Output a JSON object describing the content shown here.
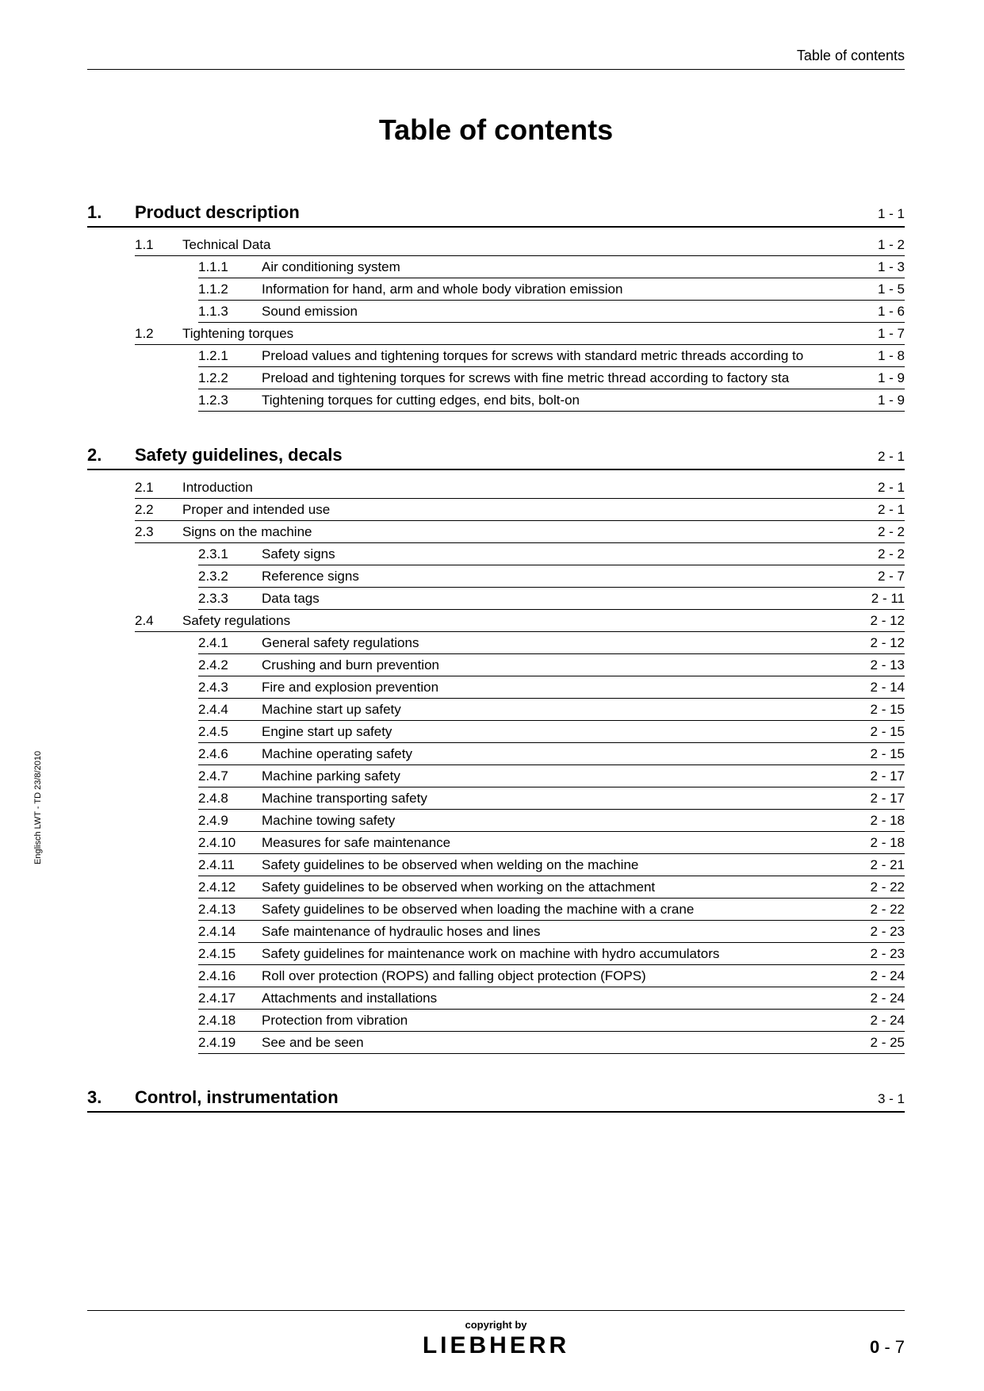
{
  "header_label": "Table of contents",
  "main_title": "Table of contents",
  "side_text": "Englisch  LWT - TD 23/8/2010",
  "copyright": "copyright by",
  "brand": "LIEBHERR",
  "page_number_bold": "0",
  "page_number_rest": " - 7",
  "sections": [
    {
      "num": "1.",
      "title": "Product description",
      "page": "1 - 1",
      "subs": [
        {
          "num": "1.1",
          "title": "Technical Data",
          "page": "1 - 2",
          "subsubs": [
            {
              "num": "1.1.1",
              "title": "Air conditioning system",
              "page": "1 - 3"
            },
            {
              "num": "1.1.2",
              "title": "Information for hand, arm and whole body vibration emission",
              "page": "1 - 5"
            },
            {
              "num": "1.1.3",
              "title": "Sound emission",
              "page": "1 - 6"
            }
          ]
        },
        {
          "num": "1.2",
          "title": "Tightening torques",
          "page": "1 - 7",
          "subsubs": [
            {
              "num": "1.2.1",
              "title": "Preload values and tightening torques for screws with standard metric threads according to",
              "page": "1 - 8"
            },
            {
              "num": "1.2.2",
              "title": "Preload and tightening torques for screws with fine metric thread according to factory sta",
              "page": "1 - 9"
            },
            {
              "num": "1.2.3",
              "title": "Tightening torques for cutting edges, end bits, bolt-on",
              "page": "1 - 9"
            }
          ]
        }
      ]
    },
    {
      "num": "2.",
      "title": "Safety guidelines, decals",
      "page": "2 - 1",
      "subs": [
        {
          "num": "2.1",
          "title": "Introduction",
          "page": "2 - 1",
          "subsubs": []
        },
        {
          "num": "2.2",
          "title": "Proper and intended use",
          "page": "2 - 1",
          "subsubs": []
        },
        {
          "num": "2.3",
          "title": "Signs on the machine",
          "page": "2 - 2",
          "subsubs": [
            {
              "num": "2.3.1",
              "title": "Safety signs",
              "page": "2 - 2"
            },
            {
              "num": "2.3.2",
              "title": "Reference signs",
              "page": "2 - 7"
            },
            {
              "num": "2.3.3",
              "title": "Data tags",
              "page": "2 - 11"
            }
          ]
        },
        {
          "num": "2.4",
          "title": "Safety regulations",
          "page": "2 - 12",
          "subsubs": [
            {
              "num": "2.4.1",
              "title": "General safety regulations",
              "page": "2 - 12"
            },
            {
              "num": "2.4.2",
              "title": "Crushing and burn prevention",
              "page": "2 - 13"
            },
            {
              "num": "2.4.3",
              "title": "Fire and explosion prevention",
              "page": "2 - 14"
            },
            {
              "num": "2.4.4",
              "title": "Machine start up safety",
              "page": "2 - 15"
            },
            {
              "num": "2.4.5",
              "title": "Engine start up safety",
              "page": "2 - 15"
            },
            {
              "num": "2.4.6",
              "title": "Machine operating safety",
              "page": "2 - 15"
            },
            {
              "num": "2.4.7",
              "title": "Machine parking safety",
              "page": "2 - 17"
            },
            {
              "num": "2.4.8",
              "title": "Machine transporting safety",
              "page": "2 - 17"
            },
            {
              "num": "2.4.9",
              "title": "Machine towing safety",
              "page": "2 - 18"
            },
            {
              "num": "2.4.10",
              "title": "Measures for safe maintenance",
              "page": "2 - 18"
            },
            {
              "num": "2.4.11",
              "title": "Safety guidelines to be observed when welding on the machine",
              "page": "2 - 21"
            },
            {
              "num": "2.4.12",
              "title": "Safety guidelines to be observed when working on the attachment",
              "page": "2 - 22"
            },
            {
              "num": "2.4.13",
              "title": "Safety guidelines to be observed when loading the machine with a crane",
              "page": "2 - 22"
            },
            {
              "num": "2.4.14",
              "title": "Safe maintenance of hydraulic hoses and lines",
              "page": "2 - 23"
            },
            {
              "num": "2.4.15",
              "title": "Safety guidelines for maintenance work on machine with hydro accumulators",
              "page": "2 - 23"
            },
            {
              "num": "2.4.16",
              "title": "Roll over protection (ROPS) and falling object protection (FOPS)",
              "page": "2 - 24"
            },
            {
              "num": "2.4.17",
              "title": "Attachments and installations",
              "page": "2 - 24"
            },
            {
              "num": "2.4.18",
              "title": "Protection from vibration",
              "page": "2 - 24"
            },
            {
              "num": "2.4.19",
              "title": "See and be seen",
              "page": "2 - 25"
            }
          ]
        }
      ]
    },
    {
      "num": "3.",
      "title": "Control, instrumentation",
      "page": "3 - 1",
      "subs": []
    }
  ]
}
